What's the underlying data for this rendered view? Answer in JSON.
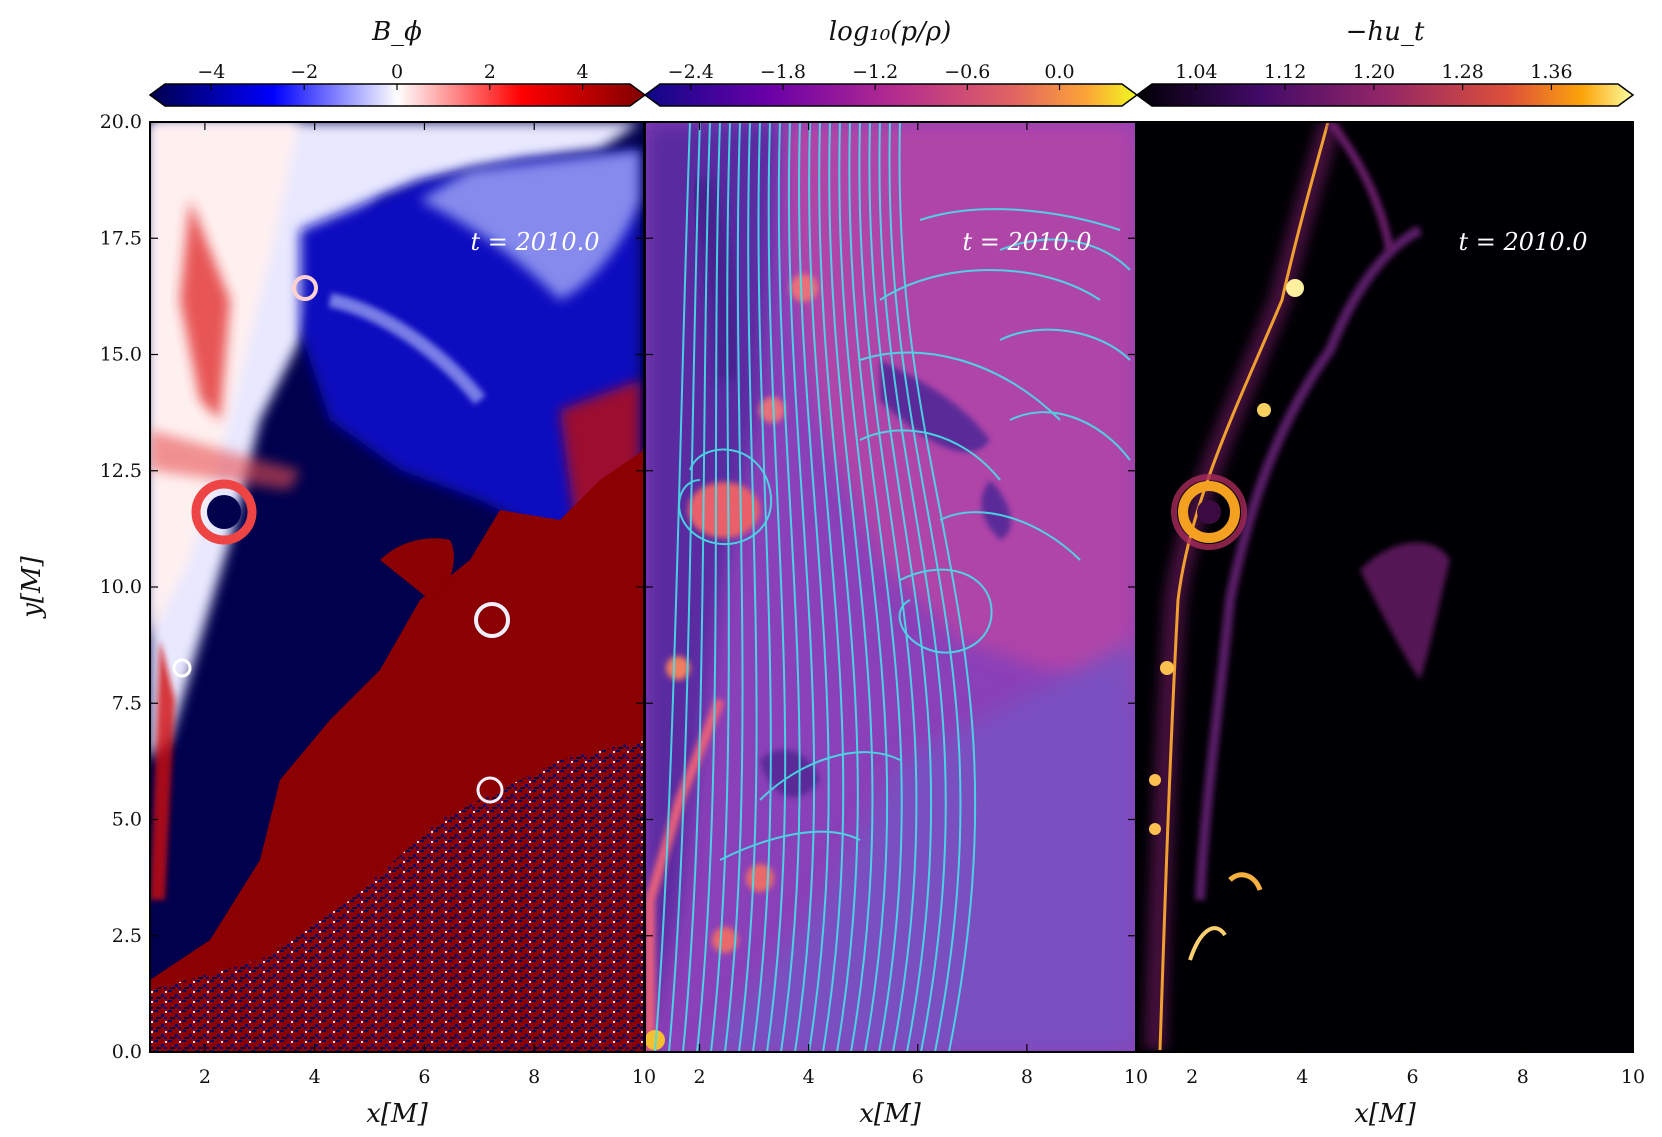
{
  "chart_data": [
    {
      "type": "heatmap",
      "title": "B_ϕ",
      "colormap": "seismic",
      "colorbar_ticks": [
        "−4",
        "−2",
        "0",
        "2",
        "4"
      ],
      "colorbar_range": [
        -5,
        5
      ],
      "xlabel": "x[M]",
      "ylabel": "y[M]",
      "xlim": [
        1,
        10
      ],
      "ylim": [
        0,
        20
      ],
      "x_ticks": [
        "2",
        "4",
        "6",
        "8",
        "10"
      ],
      "y_ticks": [
        "0.0",
        "2.5",
        "5.0",
        "7.5",
        "10.0",
        "12.5",
        "15.0",
        "17.5",
        "20.0"
      ],
      "annotation": "t = 2010.0"
    },
    {
      "type": "heatmap",
      "title": "log₁₀(p/ρ)",
      "colormap": "plasma",
      "overlay": "streamlines",
      "streamline_color": "#40e0e0",
      "colorbar_ticks": [
        "−2.4",
        "−1.8",
        "−1.2",
        "−0.6",
        "0.0"
      ],
      "colorbar_range": [
        -2.6,
        0.4
      ],
      "xlabel": "x[M]",
      "xlim": [
        1,
        10
      ],
      "ylim": [
        0,
        20
      ],
      "x_ticks": [
        "2",
        "4",
        "6",
        "8",
        "10"
      ],
      "annotation": "t = 2010.0"
    },
    {
      "type": "heatmap",
      "title": "−hu_t",
      "colormap": "inferno",
      "colorbar_ticks": [
        "1.04",
        "1.12",
        "1.20",
        "1.28",
        "1.36"
      ],
      "colorbar_range": [
        1.0,
        1.42
      ],
      "xlabel": "x[M]",
      "xlim": [
        1,
        10
      ],
      "ylim": [
        0,
        20
      ],
      "x_ticks": [
        "2",
        "4",
        "6",
        "8",
        "10"
      ],
      "annotation": "t = 2010.0"
    }
  ]
}
